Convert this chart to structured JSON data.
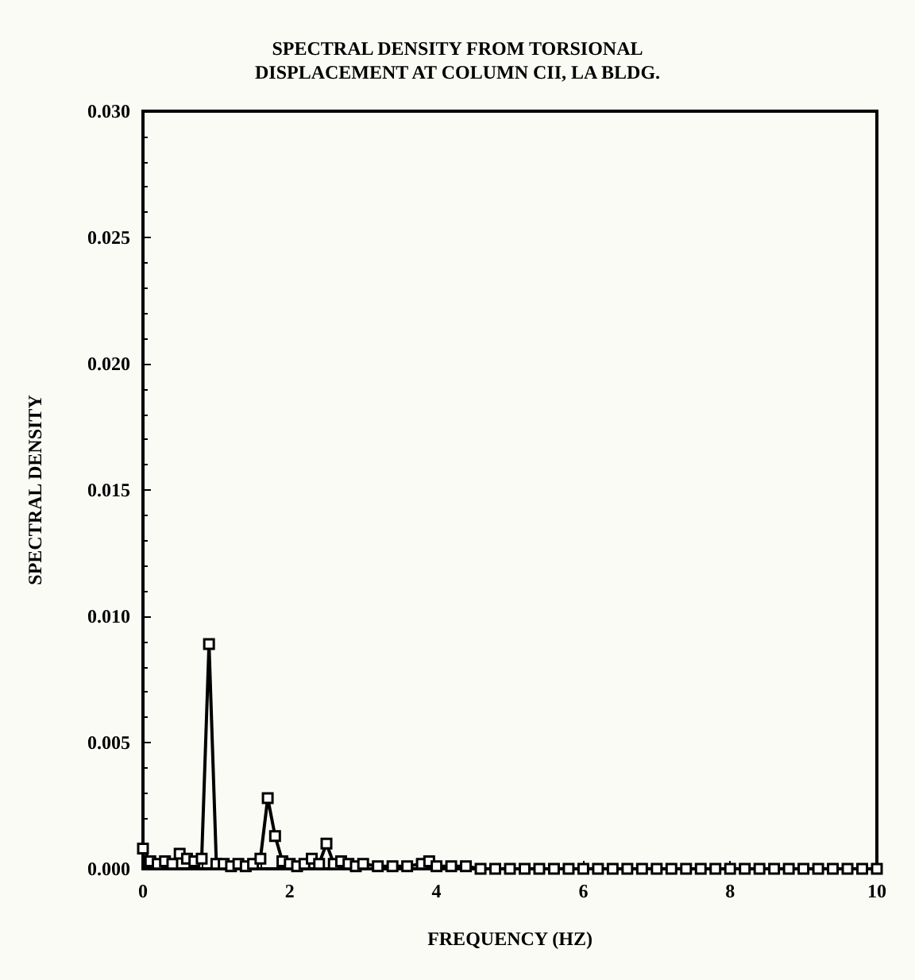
{
  "chart_data": {
    "type": "line",
    "title": "SPECTRAL DENSITY FROM TORSIONAL\nDISPLACEMENT AT COLUMN CII, LA BLDG.",
    "xlabel": "FREQUENCY (HZ)",
    "ylabel": "SPECTRAL DENSITY",
    "x": [
      0,
      0.1,
      0.2,
      0.3,
      0.4,
      0.5,
      0.6,
      0.7,
      0.8,
      0.9,
      1.0,
      1.1,
      1.2,
      1.3,
      1.4,
      1.5,
      1.6,
      1.7,
      1.8,
      1.9,
      2.0,
      2.1,
      2.2,
      2.3,
      2.4,
      2.5,
      2.6,
      2.7,
      2.8,
      2.9,
      3.0,
      3.2,
      3.4,
      3.6,
      3.8,
      3.9,
      4.0,
      4.2,
      4.4,
      4.6,
      4.8,
      5.0,
      5.2,
      5.4,
      5.6,
      5.8,
      6.0,
      6.2,
      6.4,
      6.6,
      6.8,
      7.0,
      7.2,
      7.4,
      7.6,
      7.8,
      8.0,
      8.2,
      8.4,
      8.6,
      8.8,
      9.0,
      9.2,
      9.4,
      9.6,
      9.8,
      10
    ],
    "series": [
      {
        "color": "#000000",
        "values": [
          0.0008,
          0.0003,
          0.0002,
          0.0003,
          0.0002,
          0.0006,
          0.0004,
          0.0003,
          0.0004,
          0.0089,
          0.0002,
          0.0002,
          0.0001,
          0.0002,
          0.0001,
          0.0002,
          0.0004,
          0.0028,
          0.0013,
          0.0003,
          0.0002,
          0.0001,
          0.0002,
          0.0004,
          0.0002,
          0.001,
          0.0002,
          0.0003,
          0.0002,
          0.0001,
          0.0002,
          0.0001,
          0.0001,
          0.0001,
          0.0002,
          0.0003,
          0.0001,
          0.0001,
          0.0001,
          0,
          0,
          0,
          0,
          0,
          0,
          0,
          0,
          0,
          0,
          0,
          0,
          0,
          0,
          0,
          0,
          0,
          0,
          0,
          0,
          0,
          0,
          0,
          0,
          0,
          0,
          0,
          0
        ]
      }
    ],
    "xlim": [
      0,
      10
    ],
    "xticks": [
      0,
      2,
      4,
      6,
      8,
      10
    ],
    "ylim": [
      0,
      0.03
    ],
    "yticks": [
      {
        "value": 0,
        "label": "0.000"
      },
      {
        "value": 0.005,
        "label": "0.005"
      },
      {
        "value": 0.01,
        "label": "0.010"
      },
      {
        "value": 0.015,
        "label": "0.015"
      },
      {
        "value": 0.02,
        "label": "0.020"
      },
      {
        "value": 0.025,
        "label": "0.025"
      },
      {
        "value": 0.03,
        "label": "0.030"
      }
    ],
    "grid": false,
    "marker": "square",
    "line_style": "solid"
  }
}
